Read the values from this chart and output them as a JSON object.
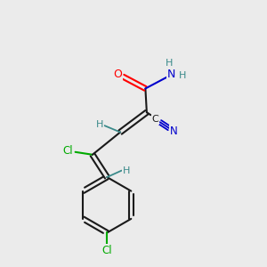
{
  "bg_color": "#ebebeb",
  "bond_color": "#1a1a1a",
  "atom_colors": {
    "O": "#ff0000",
    "N_amide": "#0000cc",
    "N_cyano": "#0000cc",
    "Cl": "#00aa00",
    "H": "#3a8a8a",
    "C": "#1a1a1a"
  },
  "figsize": [
    3.0,
    3.0
  ],
  "dpi": 100
}
